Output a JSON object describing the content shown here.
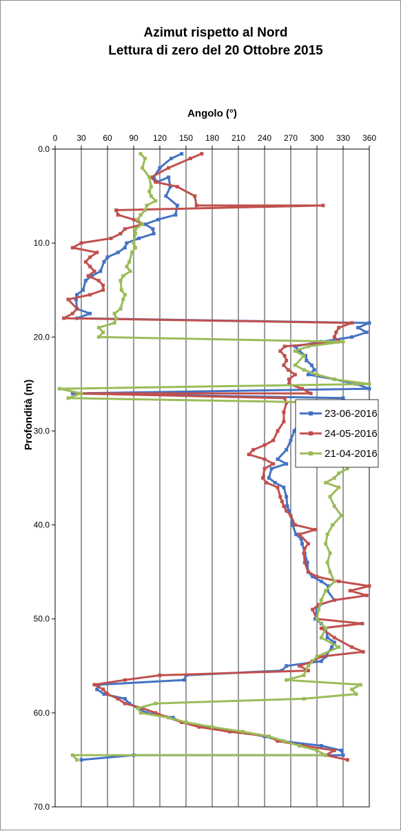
{
  "chart_data": {
    "type": "line",
    "title_line1": "Azimut rispetto al Nord",
    "title_line2": "Lettura di zero del 20 Ottobre 2015",
    "xlabel": "Angolo (°)",
    "ylabel": "Profondità (m)",
    "xlim": [
      0,
      360
    ],
    "ylim": [
      0,
      70
    ],
    "y_inverted": true,
    "x_ticks": [
      "0",
      "30",
      "60",
      "90",
      "120",
      "150",
      "180",
      "210",
      "240",
      "270",
      "300",
      "330",
      "360"
    ],
    "y_ticks": [
      "0.0",
      "10.0",
      "20.0",
      "30.0",
      "40.0",
      "50.0",
      "60.0",
      "70.0"
    ],
    "grid": "vertical",
    "legend_position": "right",
    "series": [
      {
        "name": "23-06-2016",
        "color": "#4472C4",
        "points": [
          [
            145,
            0.5
          ],
          [
            133,
            1
          ],
          [
            120,
            2
          ],
          [
            113,
            3
          ],
          [
            117,
            3.5
          ],
          [
            130,
            3
          ],
          [
            132,
            4
          ],
          [
            127,
            5
          ],
          [
            140,
            6
          ],
          [
            138,
            7
          ],
          [
            118,
            7.5
          ],
          [
            103,
            8
          ],
          [
            112,
            8.5
          ],
          [
            113,
            9
          ],
          [
            96,
            9.5
          ],
          [
            82,
            10
          ],
          [
            80,
            10.5
          ],
          [
            72,
            11
          ],
          [
            60,
            11.5
          ],
          [
            56,
            12
          ],
          [
            52,
            13
          ],
          [
            42,
            13.5
          ],
          [
            35,
            14
          ],
          [
            32,
            15
          ],
          [
            25,
            15.5
          ],
          [
            24,
            16
          ],
          [
            25,
            17
          ],
          [
            40,
            17.5
          ],
          [
            25,
            18
          ],
          [
            360,
            18.5
          ],
          [
            347,
            19
          ],
          [
            357,
            19.5
          ],
          [
            340,
            20
          ],
          [
            305,
            20.5
          ],
          [
            275,
            21
          ],
          [
            280,
            21.5
          ],
          [
            287,
            22
          ],
          [
            288,
            22.5
          ],
          [
            294,
            23
          ],
          [
            297,
            23.5
          ],
          [
            290,
            24
          ],
          [
            320,
            24.5
          ],
          [
            345,
            25
          ],
          [
            360,
            25.5
          ],
          [
            20,
            26
          ],
          [
            330,
            26.5
          ],
          [
            330,
            27
          ],
          [
            290,
            27.5
          ],
          [
            292,
            28
          ],
          [
            280,
            29
          ],
          [
            274,
            30
          ],
          [
            270,
            31
          ],
          [
            265,
            32
          ],
          [
            255,
            33
          ],
          [
            265,
            33.5
          ],
          [
            248,
            34
          ],
          [
            245,
            35
          ],
          [
            252,
            35.5
          ],
          [
            262,
            36
          ],
          [
            265,
            37
          ],
          [
            266,
            38
          ],
          [
            268,
            38.5
          ],
          [
            270,
            39
          ],
          [
            272,
            40
          ],
          [
            276,
            41
          ],
          [
            282,
            41.5
          ],
          [
            283,
            42
          ],
          [
            286,
            43
          ],
          [
            289,
            44
          ],
          [
            290,
            45
          ],
          [
            295,
            45.5
          ],
          [
            305,
            46
          ],
          [
            313,
            46.5
          ],
          [
            312,
            47
          ],
          [
            320,
            48
          ],
          [
            303,
            48.5
          ],
          [
            300,
            49
          ],
          [
            298,
            50
          ],
          [
            305,
            50.5
          ],
          [
            310,
            51
          ],
          [
            312,
            52
          ],
          [
            320,
            52.5
          ],
          [
            317,
            53
          ],
          [
            310,
            54
          ],
          [
            305,
            54.5
          ],
          [
            265,
            55
          ],
          [
            260,
            55.5
          ],
          [
            150,
            56
          ],
          [
            148,
            56.5
          ],
          [
            50,
            57
          ],
          [
            48,
            57.5
          ],
          [
            56,
            58
          ],
          [
            80,
            58.5
          ],
          [
            85,
            59
          ],
          [
            95,
            59.5
          ],
          [
            105,
            60
          ],
          [
            135,
            60.5
          ],
          [
            145,
            61
          ],
          [
            175,
            61.5
          ],
          [
            210,
            62
          ],
          [
            240,
            62.5
          ],
          [
            260,
            63
          ],
          [
            305,
            63.5
          ],
          [
            328,
            64
          ],
          [
            330,
            64.5
          ],
          [
            90,
            64.5
          ],
          [
            30,
            65
          ]
        ]
      },
      {
        "name": "24-05-2016",
        "color": "#C0504D",
        "points": [
          [
            168,
            0.5
          ],
          [
            155,
            1
          ],
          [
            130,
            2
          ],
          [
            110,
            3
          ],
          [
            115,
            3.5
          ],
          [
            140,
            4
          ],
          [
            160,
            5
          ],
          [
            162,
            6
          ],
          [
            307,
            6
          ],
          [
            70,
            6.5
          ],
          [
            72,
            7
          ],
          [
            90,
            7.5
          ],
          [
            100,
            8
          ],
          [
            80,
            8.5
          ],
          [
            75,
            9
          ],
          [
            64,
            9.5
          ],
          [
            30,
            10
          ],
          [
            20,
            10.5
          ],
          [
            48,
            11
          ],
          [
            40,
            11.5
          ],
          [
            35,
            12
          ],
          [
            40,
            12.5
          ],
          [
            45,
            13
          ],
          [
            38,
            13.5
          ],
          [
            50,
            14
          ],
          [
            55,
            14.5
          ],
          [
            55,
            15
          ],
          [
            40,
            15.5
          ],
          [
            15,
            16
          ],
          [
            25,
            17
          ],
          [
            20,
            17.5
          ],
          [
            10,
            18
          ],
          [
            340,
            18.5
          ],
          [
            325,
            19
          ],
          [
            322,
            19.5
          ],
          [
            320,
            20
          ],
          [
            325,
            20.5
          ],
          [
            263,
            21
          ],
          [
            258,
            21.5
          ],
          [
            263,
            22
          ],
          [
            265,
            22.5
          ],
          [
            262,
            23
          ],
          [
            267,
            23.5
          ],
          [
            275,
            24
          ],
          [
            268,
            24.5
          ],
          [
            268,
            25
          ],
          [
            283,
            25.5
          ],
          [
            293,
            26
          ],
          [
            25,
            26
          ],
          [
            263,
            26.5
          ],
          [
            265,
            27
          ],
          [
            262,
            28
          ],
          [
            262,
            29
          ],
          [
            255,
            30
          ],
          [
            250,
            31
          ],
          [
            240,
            31.5
          ],
          [
            227,
            32
          ],
          [
            222,
            32.5
          ],
          [
            240,
            33
          ],
          [
            250,
            33.5
          ],
          [
            240,
            34
          ],
          [
            238,
            35
          ],
          [
            242,
            35.5
          ],
          [
            255,
            36
          ],
          [
            258,
            37
          ],
          [
            260,
            37.5
          ],
          [
            262,
            38
          ],
          [
            265,
            38.5
          ],
          [
            270,
            39
          ],
          [
            275,
            40
          ],
          [
            298,
            40.5
          ],
          [
            280,
            41
          ],
          [
            290,
            42
          ],
          [
            286,
            42.5
          ],
          [
            285,
            43
          ],
          [
            286,
            44
          ],
          [
            290,
            45
          ],
          [
            300,
            45.5
          ],
          [
            325,
            46
          ],
          [
            360,
            46.5
          ],
          [
            338,
            47
          ],
          [
            357,
            47.5
          ],
          [
            320,
            48
          ],
          [
            302,
            48.5
          ],
          [
            295,
            49
          ],
          [
            300,
            50
          ],
          [
            352,
            50.5
          ],
          [
            305,
            51
          ],
          [
            320,
            52
          ],
          [
            340,
            53
          ],
          [
            353,
            53.5
          ],
          [
            305,
            54
          ],
          [
            295,
            54.5
          ],
          [
            280,
            55
          ],
          [
            290,
            55.5
          ],
          [
            120,
            56
          ],
          [
            80,
            56.5
          ],
          [
            45,
            57
          ],
          [
            55,
            57.5
          ],
          [
            60,
            58
          ],
          [
            72,
            58.5
          ],
          [
            80,
            59
          ],
          [
            100,
            59.5
          ],
          [
            115,
            60
          ],
          [
            130,
            60.5
          ],
          [
            145,
            61
          ],
          [
            165,
            61.5
          ],
          [
            200,
            62
          ],
          [
            245,
            62.5
          ],
          [
            255,
            63
          ],
          [
            285,
            63.5
          ],
          [
            320,
            64
          ],
          [
            310,
            64.5
          ],
          [
            335,
            65
          ]
        ]
      },
      {
        "name": "21-04-2016",
        "color": "#9BBB59",
        "points": [
          [
            98,
            0.5
          ],
          [
            103,
            1
          ],
          [
            100,
            2
          ],
          [
            108,
            3
          ],
          [
            110,
            4
          ],
          [
            108,
            4.5
          ],
          [
            110,
            5
          ],
          [
            115,
            5.5
          ],
          [
            105,
            6
          ],
          [
            103,
            6.5
          ],
          [
            98,
            7
          ],
          [
            95,
            7.5
          ],
          [
            100,
            8
          ],
          [
            92,
            8.5
          ],
          [
            92,
            9
          ],
          [
            90,
            10
          ],
          [
            92,
            10.5
          ],
          [
            88,
            11
          ],
          [
            85,
            12
          ],
          [
            82,
            12.5
          ],
          [
            86,
            13
          ],
          [
            78,
            13.5
          ],
          [
            75,
            14
          ],
          [
            76,
            15
          ],
          [
            80,
            15.5
          ],
          [
            78,
            16
          ],
          [
            75,
            17
          ],
          [
            68,
            17.5
          ],
          [
            70,
            18
          ],
          [
            68,
            18.5
          ],
          [
            50,
            19
          ],
          [
            55,
            19.5
          ],
          [
            50,
            20
          ],
          [
            330,
            20.5
          ],
          [
            290,
            21
          ],
          [
            275,
            21.5
          ],
          [
            285,
            22
          ],
          [
            275,
            23
          ],
          [
            285,
            23.5
          ],
          [
            300,
            24
          ],
          [
            320,
            24.5
          ],
          [
            360,
            25
          ],
          [
            5,
            25.5
          ],
          [
            30,
            26
          ],
          [
            15,
            26.5
          ],
          [
            330,
            27
          ],
          [
            300,
            27.5
          ],
          [
            302,
            28
          ],
          [
            320,
            29
          ],
          [
            330,
            30
          ],
          [
            325,
            31
          ],
          [
            330,
            32
          ],
          [
            330,
            33
          ],
          [
            335,
            34
          ],
          [
            325,
            34.5
          ],
          [
            320,
            35
          ],
          [
            310,
            35.5
          ],
          [
            325,
            36
          ],
          [
            315,
            37
          ],
          [
            320,
            38
          ],
          [
            328,
            39
          ],
          [
            318,
            40
          ],
          [
            312,
            41
          ],
          [
            310,
            42
          ],
          [
            315,
            43
          ],
          [
            312,
            44
          ],
          [
            315,
            45
          ],
          [
            320,
            46
          ],
          [
            310,
            47
          ],
          [
            305,
            48
          ],
          [
            302,
            49
          ],
          [
            300,
            50
          ],
          [
            310,
            51
          ],
          [
            305,
            52
          ],
          [
            325,
            53
          ],
          [
            300,
            54
          ],
          [
            290,
            55
          ],
          [
            285,
            56
          ],
          [
            265,
            56.5
          ],
          [
            350,
            57
          ],
          [
            340,
            57.5
          ],
          [
            345,
            58
          ],
          [
            285,
            58.5
          ],
          [
            115,
            59
          ],
          [
            95,
            59.5
          ],
          [
            98,
            60
          ],
          [
            130,
            60.5
          ],
          [
            150,
            61
          ],
          [
            180,
            61.5
          ],
          [
            215,
            62
          ],
          [
            245,
            62.5
          ],
          [
            262,
            63
          ],
          [
            280,
            63.5
          ],
          [
            300,
            64
          ],
          [
            310,
            64.5
          ],
          [
            20,
            64.5
          ],
          [
            25,
            65
          ]
        ]
      }
    ]
  }
}
